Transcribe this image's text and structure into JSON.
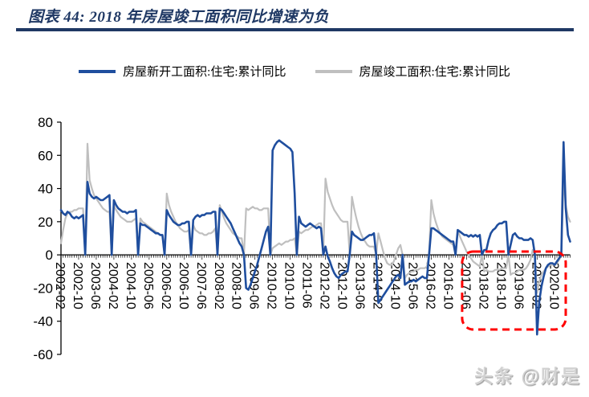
{
  "header": {
    "title": "图表 44:  2018 年房屋竣工面积同比增速为负"
  },
  "watermark": {
    "text": "头条 @财是"
  },
  "colors": {
    "title": "#1F3864",
    "header_rule": "#1F3864",
    "axis": "#000000",
    "series_new_starts": "#1F4E9E",
    "series_completions": "#BFBFBF",
    "highlight_box": "#FF0000",
    "watermark": "#D2D2D2"
  },
  "chart_data": {
    "type": "line",
    "title": "2018 年房屋竣工面积同比增速为负",
    "xlabel": "",
    "ylabel": "",
    "ylim": [
      -60,
      80
    ],
    "yticks": [
      80,
      60,
      40,
      20,
      0,
      -20,
      -40,
      -60
    ],
    "grid": false,
    "legend_position": "top",
    "x_start": "2002-02",
    "x_freq": "monthly",
    "xtick_every": 8,
    "xtick_labels": [
      "2002-02",
      "2002-10",
      "2003-06",
      "2004-02",
      "2004-10",
      "2005-06",
      "2006-02",
      "2006-10",
      "2007-06",
      "2008-02",
      "2008-10",
      "2009-06",
      "2010-02",
      "2010-10",
      "2011-06",
      "2012-02",
      "2012-10",
      "2013-06",
      "2014-02",
      "2014-10",
      "2015-06",
      "2016-02",
      "2016-10",
      "2017-06",
      "2018-02",
      "2018-10",
      "2019-06",
      "2020-02",
      "2020-10"
    ],
    "series": [
      {
        "name": "房屋新开工面积:住宅:累计同比",
        "color": "#1F4E9E",
        "width": 2.6,
        "values": [
          27,
          25,
          24,
          26,
          25,
          23,
          22,
          23,
          22,
          23,
          24,
          0,
          44,
          37,
          35,
          34,
          35,
          34,
          33,
          33,
          34,
          35,
          36,
          0,
          33,
          30,
          28,
          27,
          26,
          26,
          25,
          26,
          26,
          26,
          27,
          0,
          19,
          18,
          18,
          17,
          16,
          15,
          14,
          13,
          13,
          12,
          12,
          0,
          27,
          24,
          22,
          20,
          19,
          18,
          18,
          19,
          19,
          20,
          20,
          0,
          21,
          23,
          24,
          23,
          24,
          24,
          25,
          25,
          25,
          26,
          26,
          0,
          28,
          27,
          25,
          23,
          21,
          19,
          16,
          13,
          10,
          7,
          5,
          0,
          -20,
          -21,
          -18,
          -14,
          -10,
          -6,
          -1,
          4,
          9,
          14,
          17,
          0,
          63,
          66,
          68,
          69,
          68,
          67,
          66,
          65,
          64,
          62,
          37,
          0,
          23,
          19,
          18,
          17,
          18,
          19,
          18,
          17,
          16,
          17,
          16,
          0,
          5,
          -1,
          -4,
          -8,
          -11,
          -13,
          -14,
          -12,
          -11,
          -10,
          -10,
          0,
          14,
          12,
          11,
          10,
          9,
          9,
          10,
          11,
          12,
          12,
          13,
          0,
          -29,
          -27,
          -25,
          -23,
          -21,
          -19,
          -17,
          -15,
          -13,
          -12,
          -14,
          0,
          -18,
          -17,
          -16,
          -16,
          -15,
          -16,
          -15,
          -14,
          -13,
          -14,
          -14,
          0,
          16,
          16,
          15,
          14,
          13,
          12,
          11,
          10,
          9,
          8,
          8,
          0,
          15,
          14,
          13,
          12,
          12,
          11,
          12,
          11,
          12,
          11,
          12,
          0,
          3,
          3,
          9,
          13,
          15,
          16,
          18,
          19,
          19,
          20,
          20,
          0,
          6,
          12,
          13,
          11,
          10,
          10,
          9,
          9,
          9,
          10,
          9,
          0,
          -48,
          -28,
          -19,
          -13,
          -8,
          -6,
          -5,
          -5,
          -6,
          -4,
          -2,
          0,
          68,
          28,
          12,
          8
        ]
      },
      {
        "name": "房屋竣工面积:住宅:累计同比",
        "color": "#BFBFBF",
        "width": 2.2,
        "values": [
          7,
          15,
          22,
          25,
          26,
          26,
          27,
          27,
          28,
          28,
          28,
          0,
          67,
          45,
          40,
          36,
          34,
          32,
          30,
          28,
          27,
          26,
          26,
          0,
          30,
          27,
          25,
          23,
          22,
          21,
          20,
          20,
          20,
          21,
          22,
          0,
          22,
          20,
          19,
          18,
          17,
          16,
          15,
          14,
          13,
          12,
          12,
          0,
          37,
          30,
          26,
          23,
          20,
          18,
          16,
          15,
          14,
          14,
          15,
          0,
          18,
          15,
          14,
          13,
          13,
          12,
          12,
          13,
          13,
          14,
          16,
          0,
          30,
          26,
          22,
          19,
          17,
          15,
          13,
          12,
          11,
          10,
          10,
          0,
          28,
          27,
          28,
          29,
          28,
          28,
          27,
          27,
          28,
          28,
          28,
          0,
          4,
          5,
          6,
          7,
          6,
          7,
          8,
          8,
          9,
          9,
          10,
          0,
          14,
          13,
          14,
          15,
          15,
          16,
          17,
          17,
          18,
          19,
          19,
          0,
          46,
          38,
          34,
          30,
          27,
          25,
          23,
          21,
          20,
          20,
          20,
          0,
          35,
          28,
          22,
          17,
          13,
          10,
          8,
          6,
          5,
          5,
          5,
          0,
          13,
          8,
          3,
          -2,
          -5,
          -6,
          -6,
          -4,
          0,
          4,
          6,
          0,
          -14,
          -12,
          -11,
          -10,
          -10,
          -9,
          -9,
          -8,
          -8,
          -8,
          -7,
          0,
          33,
          25,
          20,
          16,
          13,
          11,
          10,
          9,
          8,
          7,
          6,
          0,
          15,
          11,
          8,
          5,
          2,
          0,
          -2,
          -4,
          -5,
          -6,
          -7,
          0,
          -10,
          -9,
          -10,
          -10,
          -10,
          -9,
          -9,
          -9,
          -8,
          -8,
          -8,
          0,
          -12,
          -11,
          -11,
          -10,
          -9,
          -9,
          -9,
          -8,
          -6,
          -3,
          3,
          0,
          -23,
          -16,
          -12,
          -10,
          -8,
          -7,
          -6,
          -6,
          -6,
          -5,
          -3,
          0,
          46,
          30,
          23,
          20
        ]
      }
    ],
    "annotation": {
      "type": "dashed-box",
      "label": "highlight-2018-2020-negative-completions",
      "color": "#FF0000",
      "from": "2017-04",
      "to": "2021-03",
      "top_value": 2,
      "bottom_value": -45
    }
  }
}
